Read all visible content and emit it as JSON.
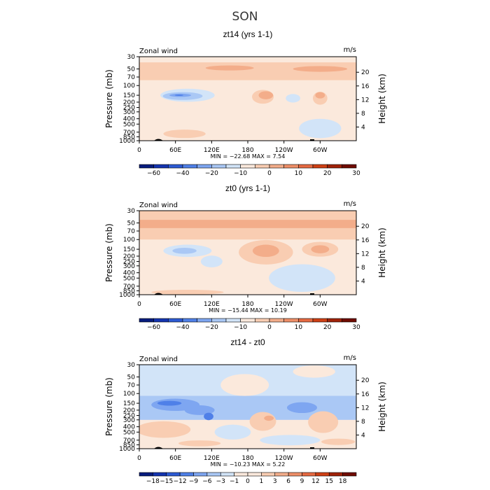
{
  "title": "SON",
  "colors": {
    "c_-60": "#071c7e",
    "c_-50": "#1434b0",
    "c_-40": "#2d5bd4",
    "c_-30": "#4f80e8",
    "c_-20": "#7ea6f1",
    "c_-10": "#aac8f5",
    "c_-5": "#d2e4f8",
    "c_0": "#fbe9dc",
    "c_5": "#f9cdb2",
    "c_10": "#f3ad8a",
    "c_15": "#ee8e68",
    "c_20": "#e66a42",
    "c_30": "#cf4015",
    "c_40": "#a02208",
    "c_50": "#700c00"
  },
  "chart_data": [
    {
      "type": "heatmap",
      "title": "zt14 (yrs 1-1)",
      "left_label": "Zonal wind",
      "right_label": "m/s",
      "ylabel": "Pressure (mb)",
      "ylabel_right": "Height (km)",
      "x_ticks": [
        "0",
        "60E",
        "120E",
        "180",
        "120W",
        "60W"
      ],
      "y_ticks": [
        "30",
        "50",
        "70",
        "100",
        "150",
        "200",
        "250",
        "300",
        "400",
        "500",
        "700",
        "850",
        "1000"
      ],
      "height_ticks": [
        "20",
        "16",
        "12",
        "8",
        "4"
      ],
      "stats": "MIN = −22.68   MAX =   7.54",
      "colorbar_labels": [
        "−60",
        "−40",
        "−20",
        "−10",
        "0",
        "10",
        "20",
        "30"
      ],
      "base": "c_0",
      "bands": [
        {
          "p0": 45,
          "p1": 60,
          "c": "c_10"
        },
        {
          "p0": 38,
          "p1": 80,
          "c": "c_5"
        }
      ],
      "blobs": [
        {
          "lon": 300,
          "p": 50,
          "rx": 45,
          "rp": 6,
          "c": "c_10"
        },
        {
          "lon": 150,
          "p": 48,
          "rx": 40,
          "rp": 5,
          "c": "c_10"
        },
        {
          "lon": 80,
          "p": 150,
          "rx": 45,
          "rp": 40,
          "c": "c_-5"
        },
        {
          "lon": 72,
          "p": 155,
          "rx": 33,
          "rp": 25,
          "c": "c_-10"
        },
        {
          "lon": 68,
          "p": 150,
          "rx": 18,
          "rp": 10,
          "c": "c_-20"
        },
        {
          "lon": 66,
          "p": 150,
          "rx": 7,
          "rp": 4,
          "c": "c_-30"
        },
        {
          "lon": 205,
          "p": 160,
          "rx": 18,
          "rp": 45,
          "c": "c_5"
        },
        {
          "lon": 210,
          "p": 150,
          "rx": 12,
          "rp": 25,
          "c": "c_10"
        },
        {
          "lon": 300,
          "p": 170,
          "rx": 12,
          "rp": 45,
          "c": "c_5"
        },
        {
          "lon": 300,
          "p": 150,
          "rx": 8,
          "rp": 20,
          "c": "c_10"
        },
        {
          "lon": 255,
          "p": 170,
          "rx": 12,
          "rp": 30,
          "c": "c_-5"
        },
        {
          "lon": 300,
          "p": 600,
          "rx": 35,
          "rp": 230,
          "c": "c_-5"
        },
        {
          "lon": 75,
          "p": 750,
          "rx": 35,
          "rp": 130,
          "c": "c_5"
        }
      ]
    },
    {
      "type": "heatmap",
      "title": "zt0 (yrs 1-1)",
      "left_label": "Zonal wind",
      "right_label": "m/s",
      "ylabel": "Pressure (mb)",
      "ylabel_right": "Height (km)",
      "x_ticks": [
        "0",
        "60E",
        "120E",
        "180",
        "120W",
        "60W"
      ],
      "y_ticks": [
        "30",
        "50",
        "70",
        "100",
        "150",
        "200",
        "250",
        "300",
        "400",
        "500",
        "700",
        "850",
        "1000"
      ],
      "height_ticks": [
        "20",
        "16",
        "12",
        "8",
        "4"
      ],
      "stats": "MIN = −15.44   MAX =  10.19",
      "colorbar_labels": [
        "−60",
        "−40",
        "−20",
        "−10",
        "0",
        "10",
        "20",
        "30"
      ],
      "base": "c_0",
      "bands": [
        {
          "p0": 30,
          "p1": 100,
          "c": "c_5"
        },
        {
          "p0": 44,
          "p1": 62,
          "c": "c_10"
        }
      ],
      "blobs": [
        {
          "lon": 210,
          "p": 170,
          "rx": 45,
          "rp": 80,
          "c": "c_5"
        },
        {
          "lon": 210,
          "p": 160,
          "rx": 22,
          "rp": 40,
          "c": "c_10"
        },
        {
          "lon": 300,
          "p": 150,
          "rx": 30,
          "rp": 45,
          "c": "c_5"
        },
        {
          "lon": 300,
          "p": 150,
          "rx": 15,
          "rp": 25,
          "c": "c_10"
        },
        {
          "lon": 80,
          "p": 160,
          "rx": 40,
          "rp": 40,
          "c": "c_-5"
        },
        {
          "lon": 75,
          "p": 160,
          "rx": 20,
          "rp": 20,
          "c": "c_-10"
        },
        {
          "lon": 120,
          "p": 250,
          "rx": 18,
          "rp": 60,
          "c": "c_-5"
        },
        {
          "lon": 270,
          "p": 500,
          "rx": 55,
          "rp": 260,
          "c": "c_-5"
        },
        {
          "lon": 80,
          "p": 900,
          "rx": 60,
          "rp": 90,
          "c": "c_5"
        }
      ]
    },
    {
      "type": "heatmap",
      "title": "zt14 - zt0",
      "left_label": "Zonal wind",
      "right_label": "m/s",
      "ylabel": "Pressure (mb)",
      "ylabel_right": "Height (km)",
      "x_ticks": [
        "0",
        "60E",
        "120E",
        "180",
        "120W",
        "60W"
      ],
      "y_ticks": [
        "30",
        "50",
        "70",
        "100",
        "150",
        "200",
        "250",
        "300",
        "400",
        "500",
        "700",
        "850",
        "1000"
      ],
      "height_ticks": [
        "20",
        "16",
        "12",
        "8",
        "4"
      ],
      "stats": "MIN = −10.23   MAX =   5.22",
      "colorbar_labels": [
        "−18",
        "−15",
        "−12",
        "−9",
        "−6",
        "−3",
        "−1",
        "0",
        "1",
        "3",
        "6",
        "9",
        "12",
        "15",
        "18"
      ],
      "base": "c_0",
      "bands": [
        {
          "p0": 30,
          "p1": 110,
          "c": "c_-5"
        },
        {
          "p0": 110,
          "p1": 300,
          "c": "c_-10"
        }
      ],
      "blobs": [
        {
          "lon": 175,
          "p": 70,
          "rx": 40,
          "rp": 30,
          "c": "c_0"
        },
        {
          "lon": 290,
          "p": 40,
          "rx": 35,
          "rp": 10,
          "c": "c_0"
        },
        {
          "lon": 60,
          "p": 160,
          "rx": 40,
          "rp": 40,
          "c": "c_-20"
        },
        {
          "lon": 50,
          "p": 150,
          "rx": 20,
          "rp": 15,
          "c": "c_-30"
        },
        {
          "lon": 100,
          "p": 200,
          "rx": 25,
          "rp": 40,
          "c": "c_-20"
        },
        {
          "lon": 115,
          "p": 260,
          "rx": 8,
          "rp": 40,
          "c": "c_-30"
        },
        {
          "lon": 205,
          "p": 320,
          "rx": 22,
          "rp": 120,
          "c": "c_5"
        },
        {
          "lon": 305,
          "p": 330,
          "rx": 25,
          "rp": 140,
          "c": "c_5"
        },
        {
          "lon": 270,
          "p": 180,
          "rx": 25,
          "rp": 40,
          "c": "c_-20"
        },
        {
          "lon": 40,
          "p": 450,
          "rx": 45,
          "rp": 150,
          "c": "c_5"
        },
        {
          "lon": 215,
          "p": 280,
          "rx": 8,
          "rp": 30,
          "c": "c_10"
        },
        {
          "lon": 155,
          "p": 500,
          "rx": 30,
          "rp": 150,
          "c": "c_-5"
        },
        {
          "lon": 250,
          "p": 700,
          "rx": 50,
          "rp": 150,
          "c": "c_-5"
        },
        {
          "lon": 330,
          "p": 750,
          "rx": 28,
          "rp": 100,
          "c": "c_5"
        },
        {
          "lon": 100,
          "p": 800,
          "rx": 35,
          "rp": 100,
          "c": "c_5"
        }
      ]
    }
  ]
}
